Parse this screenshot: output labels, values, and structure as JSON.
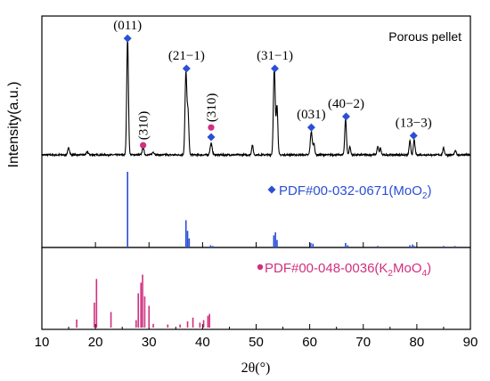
{
  "chart_data": {
    "type": "line",
    "xlabel": "2θ(°)",
    "ylabel": "Intensity(a.u.)",
    "xlim": [
      10,
      90
    ],
    "xticks": [
      10,
      20,
      30,
      40,
      50,
      60,
      70,
      80,
      90
    ],
    "colors": {
      "pattern": "#000000",
      "moo2": "#2b4fd6",
      "k2moo4": "#d0307f",
      "axes": "#000000"
    },
    "panels": [
      {
        "id": "measured",
        "label": "Porous pellet",
        "baseline": 0.13,
        "noise": 0.012,
        "peaks": [
          {
            "x": 15.0,
            "h": 0.05,
            "w": 0.18
          },
          {
            "x": 18.5,
            "h": 0.02,
            "w": 0.2
          },
          {
            "x": 26.0,
            "h": 0.85,
            "w": 0.16
          },
          {
            "x": 28.9,
            "h": 0.05,
            "w": 0.18
          },
          {
            "x": 30.8,
            "h": 0.02,
            "w": 0.2
          },
          {
            "x": 36.9,
            "h": 0.6,
            "w": 0.17
          },
          {
            "x": 37.3,
            "h": 0.3,
            "w": 0.15
          },
          {
            "x": 41.6,
            "h": 0.08,
            "w": 0.2
          },
          {
            "x": 49.3,
            "h": 0.07,
            "w": 0.15
          },
          {
            "x": 53.4,
            "h": 0.64,
            "w": 0.17
          },
          {
            "x": 53.9,
            "h": 0.36,
            "w": 0.15
          },
          {
            "x": 60.3,
            "h": 0.17,
            "w": 0.18
          },
          {
            "x": 60.8,
            "h": 0.08,
            "w": 0.15
          },
          {
            "x": 66.7,
            "h": 0.26,
            "w": 0.16
          },
          {
            "x": 67.5,
            "h": 0.06,
            "w": 0.14
          },
          {
            "x": 72.7,
            "h": 0.06,
            "w": 0.15
          },
          {
            "x": 73.2,
            "h": 0.05,
            "w": 0.14
          },
          {
            "x": 78.7,
            "h": 0.1,
            "w": 0.15
          },
          {
            "x": 79.5,
            "h": 0.11,
            "w": 0.15
          },
          {
            "x": 85.0,
            "h": 0.05,
            "w": 0.15
          },
          {
            "x": 87.2,
            "h": 0.03,
            "w": 0.15
          }
        ],
        "annotations": [
          {
            "x": 26.0,
            "y": 0.98,
            "marker": "diamond",
            "text": "(011)",
            "text_orient": "horizontal"
          },
          {
            "x": 28.9,
            "y": 0.2,
            "marker": "circle",
            "text": "(310)",
            "text_orient": "vertical"
          },
          {
            "x": 37.0,
            "y": 0.76,
            "marker": "diamond",
            "text": "(21−1)",
            "text_orient": "horizontal"
          },
          {
            "x": 41.6,
            "y": 0.26,
            "marker": "diamond",
            "text": "",
            "text_orient": "horizontal"
          },
          {
            "x": 41.6,
            "y": 0.33,
            "marker": "circle",
            "text": "(310)",
            "text_orient": "vertical"
          },
          {
            "x": 53.5,
            "y": 0.76,
            "marker": "diamond",
            "text": "(31−1)",
            "text_orient": "horizontal"
          },
          {
            "x": 60.3,
            "y": 0.33,
            "marker": "diamond",
            "text": "(031)",
            "text_orient": "horizontal"
          },
          {
            "x": 66.8,
            "y": 0.41,
            "marker": "diamond",
            "text": "(40−2)",
            "text_orient": "horizontal"
          },
          {
            "x": 79.4,
            "y": 0.27,
            "marker": "diamond",
            "text": "(13−3)",
            "text_orient": "horizontal"
          }
        ]
      },
      {
        "id": "moo2-reference",
        "label_prefix": "PDF#00-032-0671(MoO",
        "label_sub": "2",
        "label_suffix": ")",
        "marker": "diamond",
        "sticks": [
          {
            "x": 26.0,
            "h": 1.0
          },
          {
            "x": 36.9,
            "h": 0.36
          },
          {
            "x": 37.2,
            "h": 0.22
          },
          {
            "x": 37.5,
            "h": 0.12
          },
          {
            "x": 41.5,
            "h": 0.03
          },
          {
            "x": 41.9,
            "h": 0.02
          },
          {
            "x": 53.3,
            "h": 0.16
          },
          {
            "x": 53.6,
            "h": 0.2
          },
          {
            "x": 53.9,
            "h": 0.1
          },
          {
            "x": 60.2,
            "h": 0.06
          },
          {
            "x": 60.6,
            "h": 0.05
          },
          {
            "x": 66.7,
            "h": 0.06
          },
          {
            "x": 67.1,
            "h": 0.03
          },
          {
            "x": 72.7,
            "h": 0.02
          },
          {
            "x": 78.7,
            "h": 0.03
          },
          {
            "x": 79.2,
            "h": 0.04
          },
          {
            "x": 79.5,
            "h": 0.02
          },
          {
            "x": 85.0,
            "h": 0.02
          },
          {
            "x": 87.1,
            "h": 0.02
          }
        ]
      },
      {
        "id": "k2moo4-reference",
        "label_prefix": "PDF#00-048-0036(K",
        "label_sub": "2",
        "label_mid": "MoO",
        "label_sub2": "4",
        "label_suffix": ")",
        "marker": "circle",
        "sticks": [
          {
            "x": 16.5,
            "h": 0.13
          },
          {
            "x": 19.8,
            "h": 0.4
          },
          {
            "x": 20.2,
            "h": 0.78
          },
          {
            "x": 22.9,
            "h": 0.25
          },
          {
            "x": 27.6,
            "h": 0.12
          },
          {
            "x": 28.0,
            "h": 0.55
          },
          {
            "x": 28.5,
            "h": 0.72
          },
          {
            "x": 28.8,
            "h": 0.85
          },
          {
            "x": 29.2,
            "h": 0.5
          },
          {
            "x": 30.0,
            "h": 0.35
          },
          {
            "x": 30.8,
            "h": 0.06
          },
          {
            "x": 33.5,
            "h": 0.05
          },
          {
            "x": 35.8,
            "h": 0.05
          },
          {
            "x": 37.2,
            "h": 0.1
          },
          {
            "x": 38.2,
            "h": 0.16
          },
          {
            "x": 39.5,
            "h": 0.08
          },
          {
            "x": 40.2,
            "h": 0.12
          },
          {
            "x": 41.0,
            "h": 0.19
          },
          {
            "x": 41.3,
            "h": 0.22
          }
        ]
      }
    ]
  }
}
